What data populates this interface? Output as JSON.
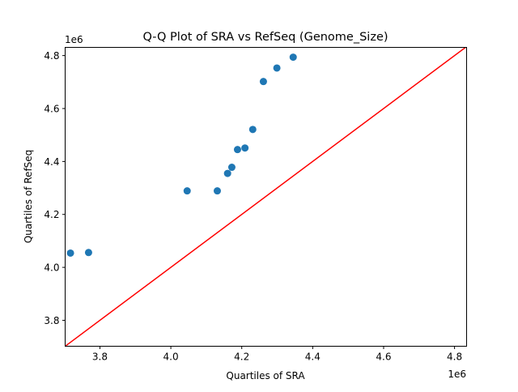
{
  "chart_data": {
    "type": "scatter",
    "title": "Q-Q Plot of SRA vs RefSeq (Genome_Size)",
    "xlabel": "Quartiles of SRA",
    "ylabel": "Quartiles of RefSeq",
    "x_offset_label": "1e6",
    "y_offset_label": "1e6",
    "xlim": [
      3.702,
      4.834
    ],
    "ylim": [
      3.702,
      4.831
    ],
    "xticks": [
      3.8,
      4.0,
      4.2,
      4.4,
      4.6,
      4.8
    ],
    "xtick_labels": [
      "3.8",
      "4.0",
      "4.2",
      "4.4",
      "4.6",
      "4.8"
    ],
    "yticks": [
      3.8,
      4.0,
      4.2,
      4.4,
      4.6,
      4.8
    ],
    "ytick_labels": [
      "3.8",
      "4.0",
      "4.2",
      "4.4",
      "4.6",
      "4.8"
    ],
    "grid": false,
    "point_color": "#1f77b4",
    "reference_line": {
      "type": "y=x",
      "color": "#ff0000"
    },
    "points": {
      "x": [
        3.717,
        3.768,
        4.046,
        4.131,
        4.16,
        4.172,
        4.188,
        4.209,
        4.231,
        4.261,
        4.299,
        4.345
      ],
      "y": [
        4.054,
        4.056,
        4.289,
        4.289,
        4.355,
        4.378,
        4.445,
        4.451,
        4.521,
        4.702,
        4.753,
        4.794
      ]
    }
  }
}
